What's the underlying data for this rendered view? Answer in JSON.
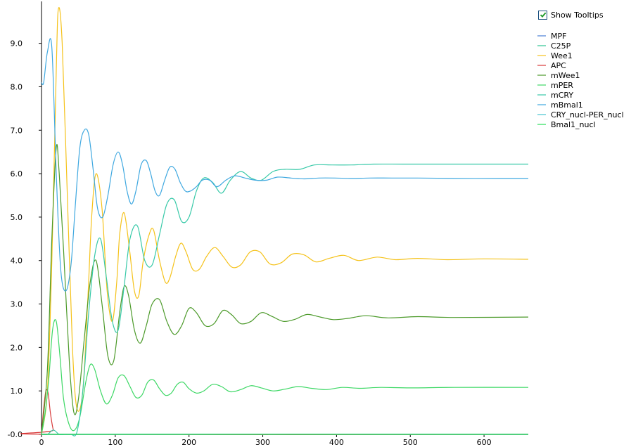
{
  "tooltip_toggle": {
    "label": "Show Tooltips",
    "checked": true
  },
  "chart_data": {
    "type": "line",
    "title": "",
    "xlabel": "",
    "ylabel": "",
    "xlim": [
      0,
      660
    ],
    "ylim": [
      0,
      9.9
    ],
    "xticks": [
      0,
      100,
      200,
      300,
      400,
      500,
      600
    ],
    "yticks": [
      -0.0,
      1.0,
      2.0,
      3.0,
      4.0,
      5.0,
      6.0,
      7.0,
      8.0,
      9.0
    ],
    "ytick_labels": [
      "-0.0",
      "1.0",
      "2.0",
      "3.0",
      "4.0",
      "5.0",
      "6.0",
      "7.0",
      "8.0",
      "9.0"
    ],
    "grid": false,
    "legend_position": "top-right",
    "series": [
      {
        "name": "MPF",
        "color": "#4a7fd4",
        "x": [
          0,
          660
        ],
        "y": [
          0.0,
          0.0
        ]
      },
      {
        "name": "C25P",
        "color": "#2fc492",
        "x": [
          0,
          660
        ],
        "y": [
          0.0,
          0.0
        ]
      },
      {
        "name": "Wee1",
        "color": "#f5c21a",
        "x": [
          0,
          8,
          14,
          20,
          23,
          28,
          35,
          42,
          48,
          56,
          63,
          68,
          74,
          82,
          89,
          96,
          102,
          106,
          112,
          119,
          126,
          132,
          138,
          146,
          152,
          160,
          168,
          174,
          182,
          189,
          196,
          205,
          214,
          224,
          235,
          246,
          258,
          270,
          283,
          296,
          310,
          325,
          340,
          356,
          372,
          390,
          410,
          430,
          455,
          480,
          510,
          550,
          600,
          660
        ],
        "y": [
          0.0,
          1.0,
          4.0,
          8.4,
          9.8,
          9.0,
          5.5,
          2.0,
          0.6,
          1.0,
          3.2,
          5.0,
          6.0,
          5.2,
          3.3,
          2.6,
          3.5,
          4.6,
          5.1,
          4.3,
          3.3,
          3.2,
          4.0,
          4.6,
          4.7,
          4.0,
          3.5,
          3.6,
          4.1,
          4.4,
          4.2,
          3.8,
          3.8,
          4.1,
          4.3,
          4.1,
          3.85,
          3.9,
          4.2,
          4.2,
          3.92,
          3.95,
          4.15,
          4.13,
          3.97,
          4.05,
          4.12,
          4.0,
          4.08,
          4.02,
          4.05,
          4.02,
          4.04,
          4.03
        ]
      },
      {
        "name": "APC",
        "color": "#d83a3a",
        "x": [
          0,
          3,
          6,
          9,
          12,
          16,
          20,
          660
        ],
        "y": [
          0.0,
          0.6,
          1.0,
          0.95,
          0.5,
          0.1,
          0.0,
          0.0
        ]
      },
      {
        "name": "mWee1",
        "color": "#4c9a2a",
        "x": [
          0,
          8,
          14,
          20,
          24,
          30,
          38,
          44,
          50,
          58,
          66,
          74,
          82,
          90,
          98,
          106,
          112,
          118,
          126,
          134,
          142,
          150,
          160,
          170,
          180,
          190,
          200,
          210,
          222,
          234,
          246,
          258,
          270,
          284,
          298,
          312,
          328,
          344,
          360,
          378,
          396,
          416,
          440,
          470,
          510,
          560,
          660
        ],
        "y": [
          0.0,
          1.5,
          4.5,
          6.6,
          6.0,
          4.2,
          1.6,
          0.5,
          0.8,
          2.2,
          3.5,
          4.0,
          3.0,
          1.8,
          1.7,
          2.8,
          3.4,
          3.2,
          2.4,
          2.1,
          2.5,
          3.0,
          3.1,
          2.6,
          2.3,
          2.5,
          2.9,
          2.8,
          2.5,
          2.55,
          2.85,
          2.75,
          2.55,
          2.6,
          2.8,
          2.72,
          2.6,
          2.65,
          2.76,
          2.7,
          2.64,
          2.67,
          2.73,
          2.68,
          2.71,
          2.69,
          2.7
        ]
      },
      {
        "name": "mPER",
        "color": "#3dd865",
        "x": [
          0,
          5,
          10,
          15,
          20,
          25,
          30,
          38,
          45,
          52,
          60,
          66,
          72,
          80,
          88,
          96,
          104,
          112,
          120,
          128,
          136,
          144,
          152,
          160,
          168,
          176,
          184,
          192,
          200,
          210,
          220,
          232,
          244,
          256,
          270,
          284,
          298,
          314,
          330,
          348,
          366,
          386,
          408,
          432,
          460,
          500,
          560,
          660
        ],
        "y": [
          0.0,
          0.5,
          1.3,
          2.4,
          2.6,
          1.8,
          0.8,
          0.2,
          0.1,
          0.4,
          1.2,
          1.6,
          1.5,
          1.0,
          0.7,
          0.9,
          1.3,
          1.35,
          1.1,
          0.85,
          0.9,
          1.2,
          1.25,
          1.05,
          0.9,
          0.95,
          1.15,
          1.2,
          1.05,
          0.95,
          1.0,
          1.15,
          1.1,
          0.98,
          1.03,
          1.12,
          1.07,
          1.0,
          1.04,
          1.1,
          1.06,
          1.03,
          1.08,
          1.06,
          1.08,
          1.07,
          1.08,
          1.08
        ]
      },
      {
        "name": "mCRY",
        "color": "#37c9a8",
        "x": [
          0,
          8,
          16,
          24,
          32,
          40,
          48,
          56,
          64,
          72,
          80,
          88,
          96,
          104,
          112,
          120,
          130,
          140,
          150,
          160,
          170,
          180,
          190,
          200,
          210,
          220,
          232,
          244,
          256,
          270,
          284,
          298,
          314,
          330,
          350,
          370,
          395,
          420,
          450,
          490,
          540,
          600,
          660
        ],
        "y": [
          0.0,
          0.0,
          0.1,
          0.0,
          0.0,
          0.0,
          0.05,
          1.0,
          2.8,
          4.1,
          4.5,
          3.6,
          2.6,
          2.4,
          3.4,
          4.5,
          4.8,
          4.0,
          3.9,
          4.6,
          5.3,
          5.4,
          4.9,
          5.0,
          5.6,
          5.9,
          5.8,
          5.55,
          5.85,
          6.05,
          5.9,
          5.85,
          6.05,
          6.1,
          6.1,
          6.2,
          6.2,
          6.2,
          6.22,
          6.22,
          6.22,
          6.22,
          6.22
        ]
      },
      {
        "name": "mBmal1",
        "color": "#3fa8e0",
        "x": [
          0,
          3,
          8,
          14,
          20,
          26,
          33,
          40,
          46,
          52,
          58,
          64,
          70,
          76,
          83,
          90,
          97,
          104,
          110,
          116,
          122,
          128,
          135,
          142,
          148,
          154,
          160,
          167,
          174,
          181,
          188,
          195,
          202,
          210,
          218,
          228,
          238,
          250,
          262,
          276,
          290,
          305,
          320,
          338,
          356,
          376,
          398,
          420,
          445,
          475,
          510,
          560,
          620,
          660
        ],
        "y": [
          8.1,
          8.1,
          8.8,
          8.9,
          6.0,
          3.8,
          3.3,
          3.9,
          5.3,
          6.6,
          7.0,
          6.9,
          6.1,
          5.2,
          5.0,
          5.5,
          6.2,
          6.5,
          6.2,
          5.6,
          5.3,
          5.6,
          6.2,
          6.3,
          6.0,
          5.6,
          5.5,
          5.85,
          6.15,
          6.1,
          5.8,
          5.6,
          5.6,
          5.7,
          5.85,
          5.85,
          5.7,
          5.85,
          5.95,
          5.9,
          5.85,
          5.85,
          5.92,
          5.9,
          5.88,
          5.9,
          5.9,
          5.89,
          5.9,
          5.9,
          5.9,
          5.89,
          5.89,
          5.89
        ]
      },
      {
        "name": "CRY_nucl-PER_nucl",
        "color": "#45c4d0",
        "x": [
          0,
          660
        ],
        "y": [
          0.0,
          0.0
        ]
      },
      {
        "name": "Bmal1_nucl",
        "color": "#29e05a",
        "x": [
          0,
          660
        ],
        "y": [
          0.0,
          0.0
        ]
      }
    ]
  }
}
